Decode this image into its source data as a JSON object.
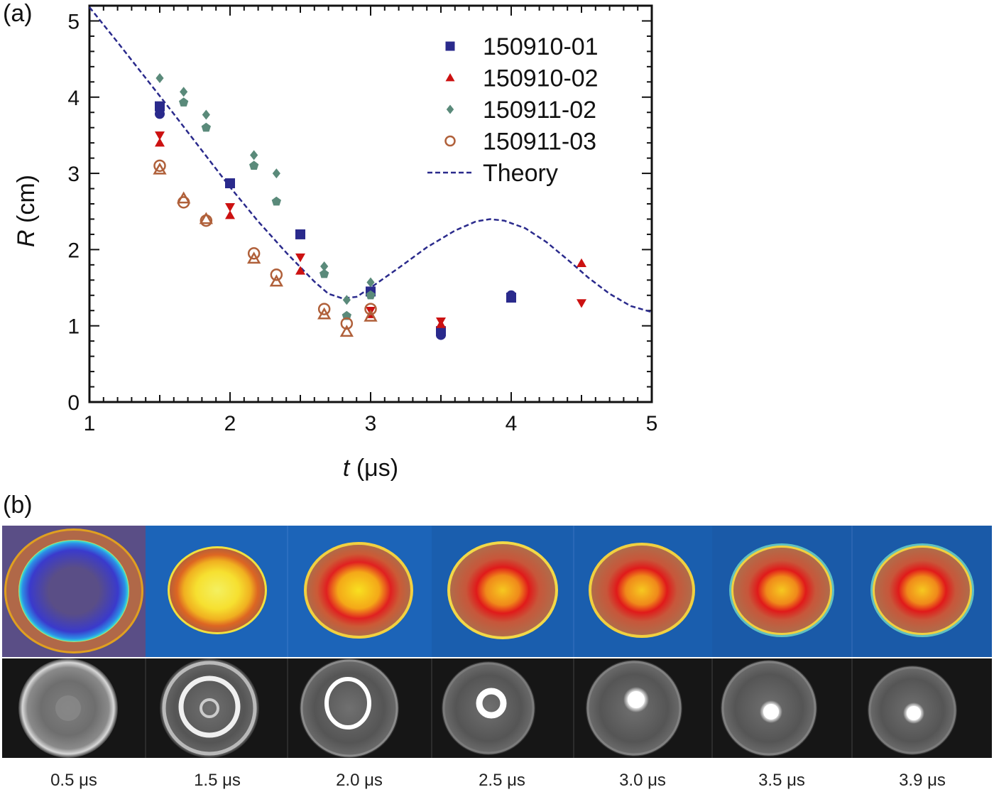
{
  "panel_a_label": "(a)",
  "panel_b_label": "(b)",
  "colors": {
    "s01": "#2a2a8c",
    "s02": "#cc1111",
    "s11_02": "#5a8a7a",
    "s11_03": "#b0603a",
    "theory": "#2a2a8c",
    "sim_bg_1": "#5a4e86",
    "sim_bg_2": "#1c64b8",
    "sim_bg_3": "#1a5eae",
    "sim_bg_4": "#1a5aa8"
  },
  "chart_data": {
    "type": "scatter",
    "xlabel_italic": "t",
    "xlabel_unit": " (μs)",
    "ylabel_italic": "R",
    "ylabel_unit": " (cm)",
    "xlim": [
      1,
      5
    ],
    "ylim": [
      0,
      5.2
    ],
    "xticks": [
      1,
      2,
      3,
      4,
      5
    ],
    "yticks": [
      0,
      1,
      2,
      3,
      4,
      5
    ],
    "legend_position": "top-right",
    "series": [
      {
        "name": "150910-01",
        "marker": "square",
        "color_key": "s01",
        "points": [
          [
            1.5,
            3.88
          ],
          [
            2.0,
            2.87
          ],
          [
            2.5,
            2.2
          ],
          [
            3.0,
            1.45
          ],
          [
            3.5,
            0.93
          ],
          [
            4.0,
            1.37
          ]
        ]
      },
      {
        "name": "",
        "marker": "circle",
        "color_key": "s01",
        "legend": false,
        "points": [
          [
            1.5,
            3.78
          ],
          [
            3.5,
            0.88
          ],
          [
            4.0,
            1.4
          ]
        ]
      },
      {
        "name": "150910-02",
        "marker": "triangle-up",
        "color_key": "s02",
        "points": [
          [
            1.5,
            3.4
          ],
          [
            2.0,
            2.45
          ],
          [
            2.5,
            1.72
          ],
          [
            3.0,
            1.15
          ],
          [
            3.5,
            1.02
          ],
          [
            4.5,
            1.82
          ]
        ]
      },
      {
        "name": "",
        "marker": "triangle-down",
        "color_key": "s02",
        "legend": false,
        "points": [
          [
            1.5,
            3.5
          ],
          [
            2.0,
            2.56
          ],
          [
            2.5,
            1.9
          ],
          [
            3.0,
            1.2
          ],
          [
            3.5,
            1.06
          ],
          [
            4.5,
            1.3
          ]
        ]
      },
      {
        "name": "150911-02",
        "marker": "diamond",
        "color_key": "s11_02",
        "points": [
          [
            1.5,
            4.25
          ],
          [
            1.67,
            4.07
          ],
          [
            1.83,
            3.77
          ],
          [
            2.17,
            3.24
          ],
          [
            2.33,
            3.0
          ],
          [
            2.67,
            1.78
          ],
          [
            2.83,
            1.34
          ],
          [
            3.0,
            1.57
          ]
        ]
      },
      {
        "name": "",
        "marker": "pentagon",
        "color_key": "s11_02",
        "legend": false,
        "points": [
          [
            1.67,
            3.93
          ],
          [
            1.83,
            3.6
          ],
          [
            2.17,
            3.1
          ],
          [
            2.33,
            2.63
          ],
          [
            2.67,
            1.68
          ],
          [
            2.83,
            1.13
          ],
          [
            3.0,
            1.4
          ]
        ]
      },
      {
        "name": "150911-03",
        "marker": "open-circle",
        "color_key": "s11_03",
        "points": [
          [
            1.5,
            3.1
          ],
          [
            1.67,
            2.62
          ],
          [
            1.83,
            2.38
          ],
          [
            2.17,
            1.95
          ],
          [
            2.33,
            1.67
          ],
          [
            2.67,
            1.22
          ],
          [
            2.83,
            1.03
          ],
          [
            3.0,
            1.22
          ]
        ]
      },
      {
        "name": "",
        "marker": "open-triangle",
        "color_key": "s11_03",
        "legend": false,
        "points": [
          [
            1.5,
            3.05
          ],
          [
            1.67,
            2.67
          ],
          [
            1.83,
            2.4
          ],
          [
            2.17,
            1.88
          ],
          [
            2.33,
            1.58
          ],
          [
            2.67,
            1.15
          ],
          [
            2.83,
            0.92
          ],
          [
            3.0,
            1.12
          ]
        ]
      }
    ],
    "theory": {
      "name": "Theory",
      "points": [
        [
          1.0,
          5.18
        ],
        [
          1.2,
          4.72
        ],
        [
          1.4,
          4.25
        ],
        [
          1.6,
          3.78
        ],
        [
          1.8,
          3.3
        ],
        [
          2.0,
          2.82
        ],
        [
          2.2,
          2.37
        ],
        [
          2.4,
          1.96
        ],
        [
          2.5,
          1.77
        ],
        [
          2.6,
          1.58
        ],
        [
          2.7,
          1.42
        ],
        [
          2.8,
          1.36
        ],
        [
          2.9,
          1.38
        ],
        [
          3.0,
          1.5
        ],
        [
          3.2,
          1.76
        ],
        [
          3.4,
          2.03
        ],
        [
          3.6,
          2.25
        ],
        [
          3.75,
          2.37
        ],
        [
          3.85,
          2.4
        ],
        [
          3.95,
          2.38
        ],
        [
          4.1,
          2.28
        ],
        [
          4.25,
          2.1
        ],
        [
          4.4,
          1.87
        ],
        [
          4.55,
          1.63
        ],
        [
          4.7,
          1.42
        ],
        [
          4.85,
          1.26
        ],
        [
          5.0,
          1.18
        ]
      ]
    }
  },
  "time_labels": [
    "0.5 μs",
    "1.5 μs",
    "2.0 μs",
    "2.5 μs",
    "3.0 μs",
    "3.5 μs",
    "3.9 μs"
  ]
}
